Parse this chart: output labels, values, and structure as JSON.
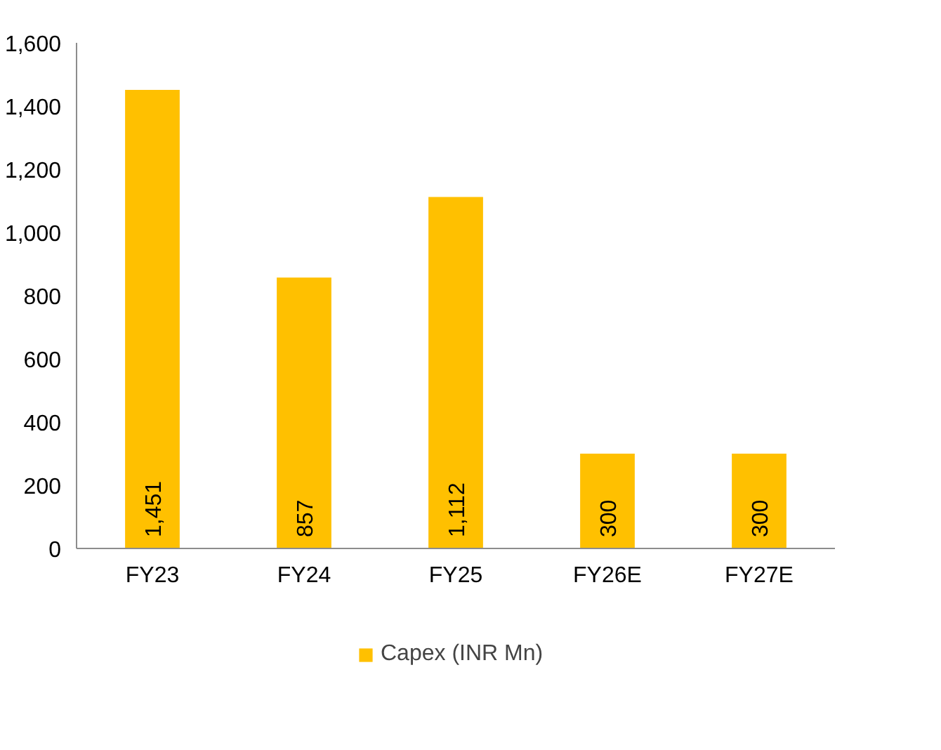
{
  "chart_data": {
    "type": "bar",
    "categories": [
      "FY23",
      "FY24",
      "FY25",
      "FY26E",
      "FY27E"
    ],
    "series": [
      {
        "name": "Capex (INR Mn)",
        "color": "#ffc000",
        "values": [
          1451,
          857,
          1112,
          300,
          300
        ],
        "value_labels": [
          "1,451",
          "857",
          "1,112",
          "300",
          "300"
        ]
      }
    ],
    "ylim": [
      0,
      1600
    ],
    "yticks": [
      0,
      {
        "value": 200,
        "label": "200"
      },
      {
        "value": 400,
        "label": "400"
      },
      {
        "value": 600,
        "label": "600"
      },
      {
        "value": 800,
        "label": "800"
      },
      {
        "value": 1000,
        "label": "1,000"
      },
      {
        "value": 1200,
        "label": "1,200"
      },
      {
        "value": 1400,
        "label": "1,400"
      },
      {
        "value": 1600,
        "label": "1,600"
      }
    ],
    "data_labels": true,
    "grid": false,
    "legend": "bottom"
  }
}
